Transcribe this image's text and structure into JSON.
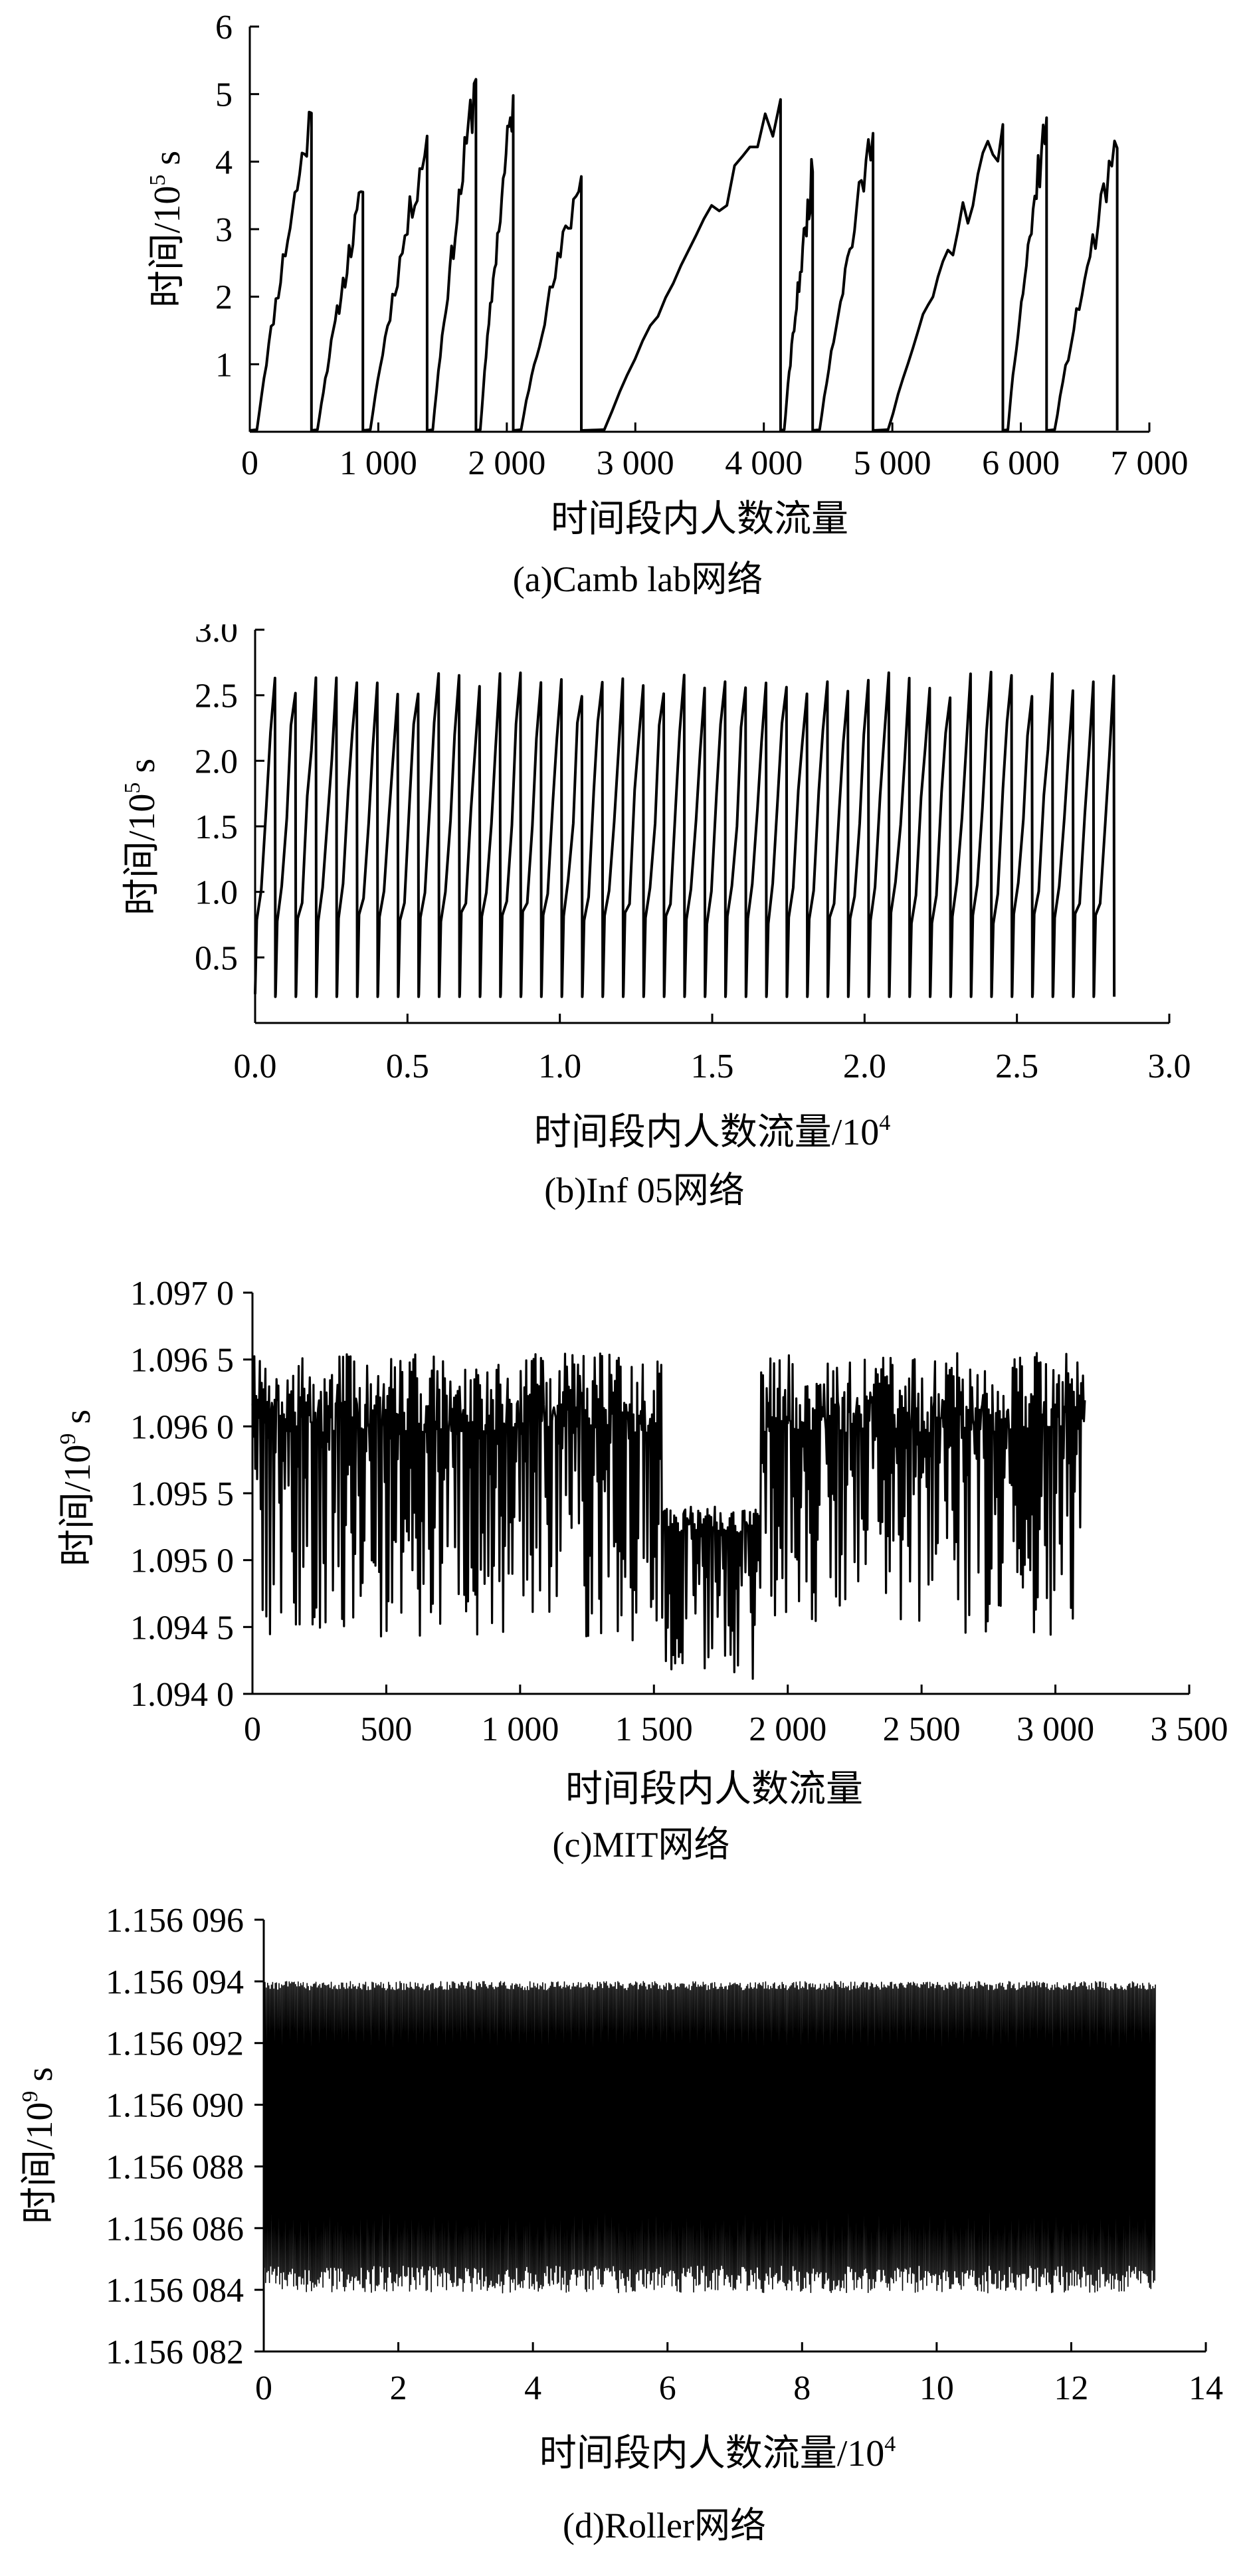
{
  "chart_data": [
    {
      "id": "a",
      "type": "line",
      "caption": "(a)Camb lab网络",
      "xlabel": "时间段内人数流量",
      "ylabel_base": "时间/10",
      "ylabel_exp": "5",
      "ylabel_unit": " s",
      "xlim": [
        0,
        7000
      ],
      "ylim": [
        0,
        6
      ],
      "xticks": [
        0,
        1000,
        2000,
        3000,
        4000,
        5000,
        6000,
        7000
      ],
      "xtick_labels": [
        "0",
        "1 000",
        "2 000",
        "3 000",
        "4 000",
        "5 000",
        "6 000",
        "7 000"
      ],
      "yticks": [
        1,
        2,
        3,
        4,
        5,
        6
      ],
      "ytick_labels": [
        "1",
        "2",
        "3",
        "4",
        "5",
        "6"
      ],
      "x_end": 6750,
      "segments": [
        {
          "x0": 0,
          "x1": 480,
          "peak": 4.72
        },
        {
          "x0": 480,
          "x1": 880,
          "peak": 3.55
        },
        {
          "x0": 880,
          "x1": 1380,
          "peak": 4.38
        },
        {
          "x0": 1380,
          "x1": 1760,
          "peak": 5.22
        },
        {
          "x0": 1760,
          "x1": 2050,
          "peak": 4.98
        },
        {
          "x0": 2050,
          "x1": 2580,
          "peak": 3.78
        },
        {
          "x0": 2580,
          "x1": 4130,
          "peak": 4.92
        },
        {
          "x0": 4130,
          "x1": 4380,
          "peak": 3.85
        },
        {
          "x0": 4380,
          "x1": 4850,
          "peak": 4.42
        },
        {
          "x0": 4850,
          "x1": 5860,
          "peak": 4.55
        },
        {
          "x0": 5860,
          "x1": 6200,
          "peak": 4.65
        },
        {
          "x0": 6200,
          "x1": 6750,
          "peak": 4.2
        }
      ]
    },
    {
      "id": "b",
      "type": "line",
      "caption": "(b)Inf 05网络",
      "xlabel_base": "时间段内人数流量/10",
      "xlabel_exp": "4",
      "ylabel_base": "时间/10",
      "ylabel_exp": "5",
      "ylabel_unit": " s",
      "xlim": [
        0,
        3.0
      ],
      "ylim": [
        0,
        3.0
      ],
      "xticks": [
        0,
        0.5,
        1.0,
        1.5,
        2.0,
        2.5,
        3.0
      ],
      "xtick_labels": [
        "0.0",
        "0.5",
        "1.0",
        "1.5",
        "2.0",
        "2.5",
        "3.0"
      ],
      "yticks": [
        0.5,
        1.0,
        1.5,
        2.0,
        2.5,
        3.0
      ],
      "ytick_labels": [
        "0.5",
        "1.0",
        "1.5",
        "2.0",
        "2.5",
        "3.0"
      ],
      "x_end": 2.82,
      "cycle_count": 42,
      "cycle_min": 0.2,
      "cycle_max": 2.68
    },
    {
      "id": "c",
      "type": "line",
      "caption": "(c)MIT网络",
      "xlabel": "时间段内人数流量",
      "ylabel_base": "时间/10",
      "ylabel_exp": "9",
      "ylabel_unit": " s",
      "xlim": [
        0,
        3500
      ],
      "ylim": [
        1.094,
        1.097
      ],
      "xticks": [
        0,
        500,
        1000,
        1500,
        2000,
        2500,
        3000,
        3500
      ],
      "xtick_labels": [
        "0",
        "500",
        "1 000",
        "1 500",
        "2 000",
        "2 500",
        "3 000",
        "3 500"
      ],
      "yticks": [
        1.094,
        1.0945,
        1.095,
        1.0955,
        1.096,
        1.0965,
        1.097
      ],
      "ytick_labels": [
        "1.094 0",
        "1.094 5",
        "1.095 0",
        "1.095 5",
        "1.096 0",
        "1.096 5",
        "1.097 0"
      ],
      "x_end": 3110,
      "max_value": 1.09655,
      "min_value": 1.094
    },
    {
      "id": "d",
      "type": "line",
      "caption": "(d)Roller网络",
      "xlabel_base": "时间段内人数流量/10",
      "xlabel_exp": "4",
      "ylabel_base": "时间/10",
      "ylabel_exp": "9",
      "ylabel_unit": " s",
      "xlim": [
        0,
        14
      ],
      "ylim": [
        1.156082,
        1.156096
      ],
      "xticks": [
        0,
        2,
        4,
        6,
        8,
        10,
        12,
        14
      ],
      "xtick_labels": [
        "0",
        "2",
        "4",
        "6",
        "8",
        "10",
        "12",
        "14"
      ],
      "yticks": [
        1.156082,
        1.156084,
        1.156086,
        1.156088,
        1.15609,
        1.156092,
        1.156094,
        1.156096
      ],
      "ytick_labels": [
        "1.156 082",
        "1.156 084",
        "1.156 086",
        "1.156 088",
        "1.156 090",
        "1.156 092",
        "1.156 094",
        "1.156 096"
      ],
      "x_end": 13.25,
      "band_top": 1.156094,
      "band_bottom": 1.1560848
    }
  ]
}
